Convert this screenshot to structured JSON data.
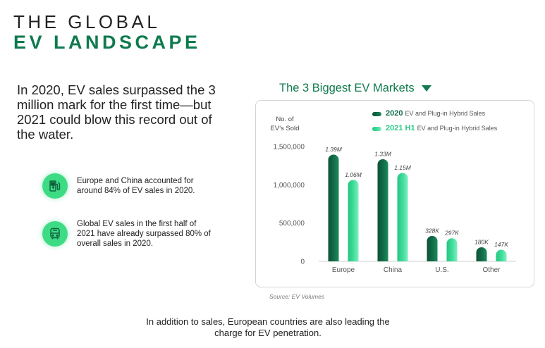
{
  "header": {
    "title_line1": "THE GLOBAL",
    "title_line2": "EV LANDSCAPE"
  },
  "intro": "In 2020, EV sales surpassed the 3 million mark for the first time—but 2021 could blow this record out of the water.",
  "facts": [
    {
      "icon": "fuel-pump-icon",
      "text": "Europe and China accounted for around 84% of EV sales in 2020."
    },
    {
      "icon": "bus-icon",
      "text": "Global EV sales in the first half of 2021 have already surpassed 80% of overall sales in 2020."
    }
  ],
  "chart_heading": "The 3 Biggest EV Markets",
  "source": "Source: EV Volumes",
  "footer": "In addition to sales, European countries are also leading the charge for EV penetration.",
  "colors": {
    "brand_green": "#0f7a4e",
    "series_2020": "#116b47",
    "series_2021": "#3ddc98",
    "icon_bg": "#3ddc84"
  },
  "chart_data": {
    "type": "bar",
    "categories": [
      "Europe",
      "China",
      "U.S.",
      "Other"
    ],
    "series": [
      {
        "name_bold": "2020",
        "name_rest": "EV and Plug-in Hybrid Sales",
        "values": [
          1390000,
          1330000,
          328000,
          180000
        ],
        "labels": [
          "1.39M",
          "1.33M",
          "328K",
          "180K"
        ]
      },
      {
        "name_bold": "2021 H1",
        "name_rest": "EV and Plug-in Hybrid Sales",
        "values": [
          1060000,
          1150000,
          297000,
          147000
        ],
        "labels": [
          "1.06M",
          "1.15M",
          "297K",
          "147K"
        ]
      }
    ],
    "ylabel_line1": "No. of",
    "ylabel_line2": "EV's Sold",
    "yticks": [
      0,
      500000,
      1000000,
      1500000
    ],
    "ytick_labels": [
      "0",
      "500,000",
      "1,000,000",
      "1,500,000"
    ],
    "ylim": [
      0,
      1500000
    ],
    "legend_position": "top-right",
    "grid": false
  }
}
